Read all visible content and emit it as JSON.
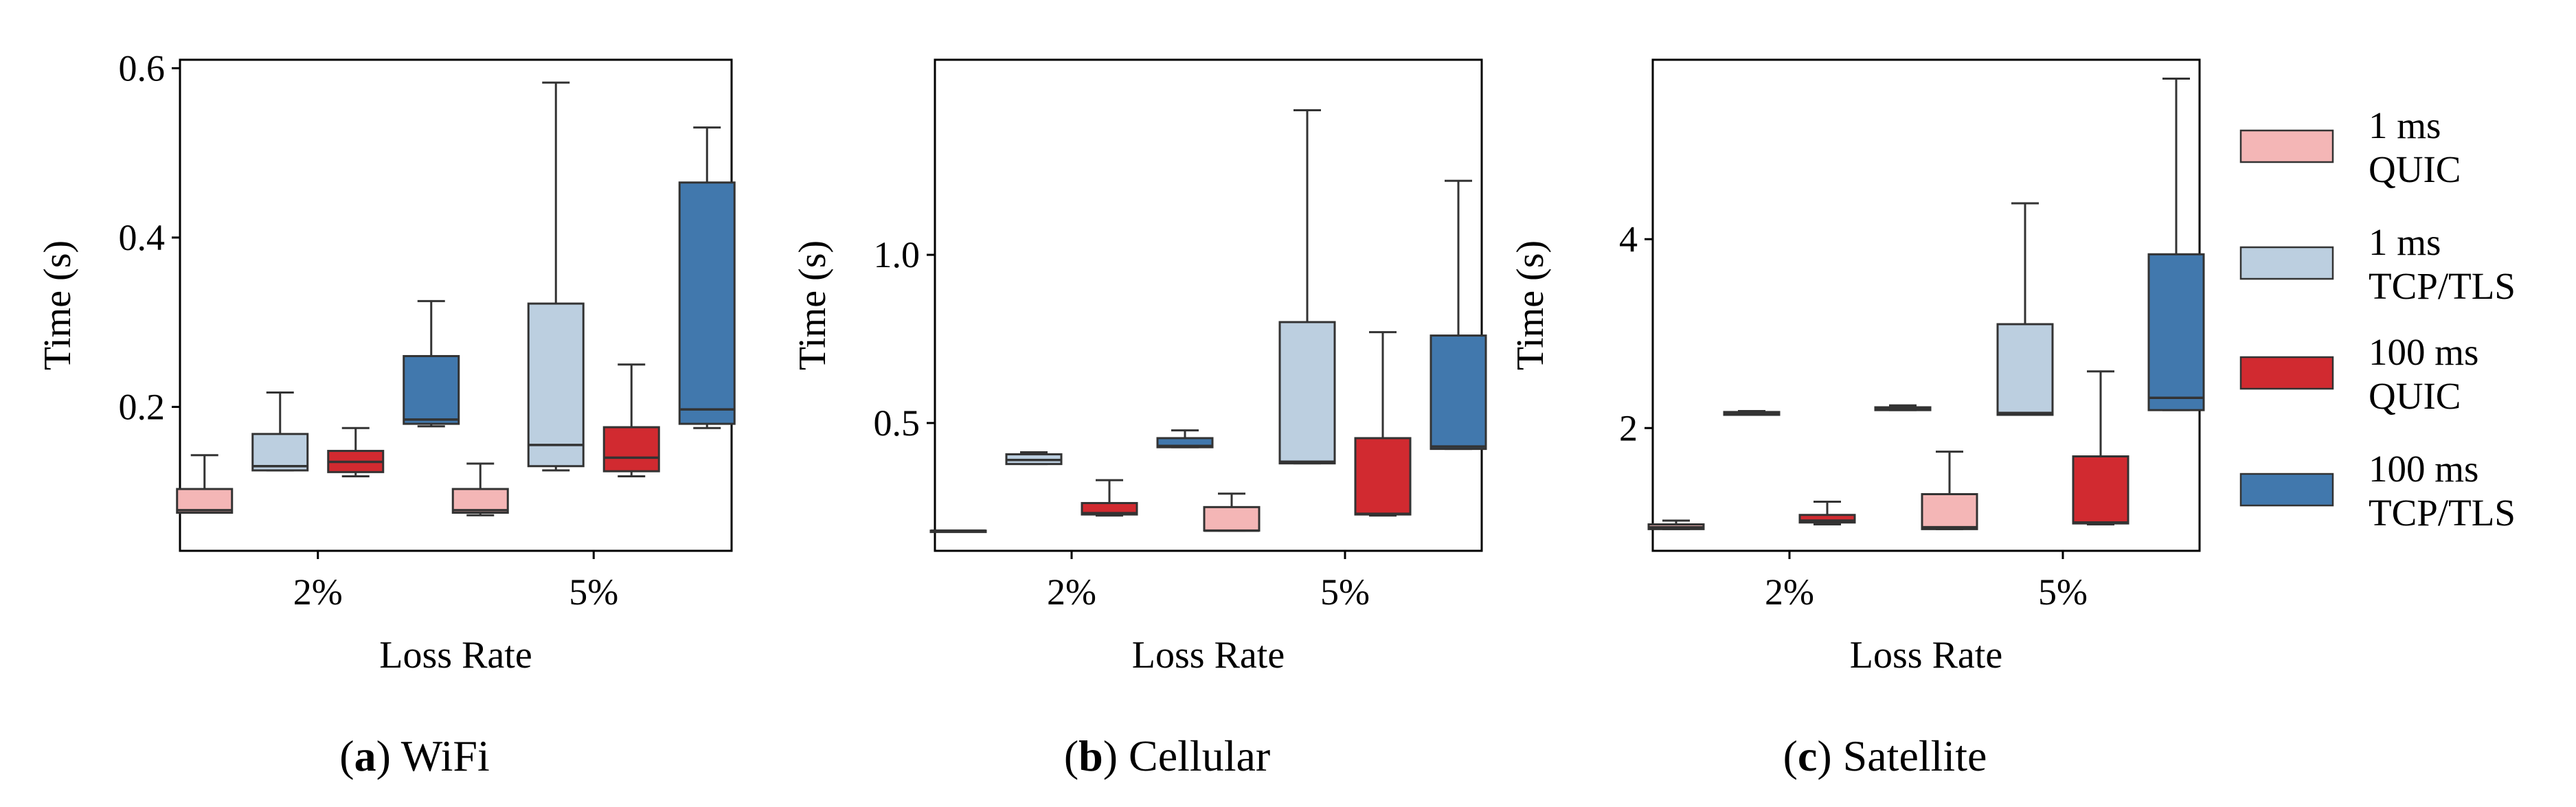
{
  "chart_data": [
    {
      "type": "boxplot",
      "caption_letter": "a",
      "caption_text": " WiFi",
      "xlabel": "Loss Rate",
      "ylabel": "Time (s)",
      "ylim": [
        0.03,
        0.61
      ],
      "yticks": [
        0.2,
        0.4,
        0.6
      ],
      "ytick_labels": [
        "0.2",
        "0.4",
        "0.6"
      ],
      "categories": [
        "2%",
        "5%"
      ],
      "boxes": [
        [
          {
            "series": 0,
            "min": 0.075,
            "q1": 0.075,
            "median": 0.078,
            "q3": 0.103,
            "max": 0.143
          },
          {
            "series": 1,
            "min": 0.125,
            "q1": 0.125,
            "median": 0.13,
            "q3": 0.168,
            "max": 0.217
          },
          {
            "series": 2,
            "min": 0.118,
            "q1": 0.123,
            "median": 0.135,
            "q3": 0.148,
            "max": 0.175
          },
          {
            "series": 3,
            "min": 0.177,
            "q1": 0.18,
            "median": 0.185,
            "q3": 0.26,
            "max": 0.325
          }
        ],
        [
          {
            "series": 0,
            "min": 0.072,
            "q1": 0.075,
            "median": 0.078,
            "q3": 0.103,
            "max": 0.133
          },
          {
            "series": 1,
            "min": 0.125,
            "q1": 0.13,
            "median": 0.155,
            "q3": 0.322,
            "max": 0.583
          },
          {
            "series": 2,
            "min": 0.118,
            "q1": 0.124,
            "median": 0.14,
            "q3": 0.176,
            "max": 0.25
          },
          {
            "series": 3,
            "min": 0.175,
            "q1": 0.18,
            "median": 0.197,
            "q3": 0.465,
            "max": 0.53
          }
        ]
      ]
    },
    {
      "type": "boxplot",
      "caption_letter": "b",
      "caption_text": " Cellular",
      "xlabel": "Loss Rate",
      "ylabel": "Time (s)",
      "ylim": [
        0.12,
        1.58
      ],
      "yticks": [
        0.5,
        1.0
      ],
      "ytick_labels": [
        "0.5",
        "1.0"
      ],
      "categories": [
        "2%",
        "5%"
      ],
      "boxes": [
        [
          {
            "series": 0,
            "min": 0.18,
            "q1": 0.18,
            "median": 0.18,
            "q3": 0.18,
            "max": 0.18
          },
          {
            "series": 1,
            "min": 0.378,
            "q1": 0.378,
            "median": 0.39,
            "q3": 0.407,
            "max": 0.413
          },
          {
            "series": 2,
            "min": 0.225,
            "q1": 0.228,
            "median": 0.232,
            "q3": 0.262,
            "max": 0.33
          },
          {
            "series": 3,
            "min": 0.428,
            "q1": 0.428,
            "median": 0.432,
            "q3": 0.455,
            "max": 0.478
          }
        ],
        [
          {
            "series": 0,
            "min": 0.18,
            "q1": 0.18,
            "median": 0.18,
            "q3": 0.25,
            "max": 0.29
          },
          {
            "series": 1,
            "min": 0.38,
            "q1": 0.38,
            "median": 0.385,
            "q3": 0.8,
            "max": 1.43
          },
          {
            "series": 2,
            "min": 0.225,
            "q1": 0.228,
            "median": 0.23,
            "q3": 0.455,
            "max": 0.77
          },
          {
            "series": 3,
            "min": 0.423,
            "q1": 0.423,
            "median": 0.43,
            "q3": 0.76,
            "max": 1.22
          }
        ]
      ]
    },
    {
      "type": "boxplot",
      "caption_letter": "c",
      "caption_text": " Satellite",
      "xlabel": "Loss Rate",
      "ylabel": "Time (s)",
      "ylim": [
        0.7,
        5.9
      ],
      "yticks": [
        2,
        4
      ],
      "ytick_labels": [
        "2",
        "4"
      ],
      "categories": [
        "2%",
        "5%"
      ],
      "boxes": [
        [
          {
            "series": 0,
            "min": 0.93,
            "q1": 0.93,
            "median": 0.95,
            "q3": 0.98,
            "max": 1.02
          },
          {
            "series": 1,
            "min": 2.14,
            "q1": 2.14,
            "median": 2.16,
            "q3": 2.17,
            "max": 2.18
          },
          {
            "series": 2,
            "min": 0.98,
            "q1": 1.0,
            "median": 1.02,
            "q3": 1.08,
            "max": 1.22
          },
          {
            "series": 3,
            "min": 2.19,
            "q1": 2.19,
            "median": 2.21,
            "q3": 2.22,
            "max": 2.24
          }
        ],
        [
          {
            "series": 0,
            "min": 0.93,
            "q1": 0.93,
            "median": 0.95,
            "q3": 1.3,
            "max": 1.75
          },
          {
            "series": 1,
            "min": 2.14,
            "q1": 2.14,
            "median": 2.16,
            "q3": 3.1,
            "max": 4.38
          },
          {
            "series": 2,
            "min": 0.98,
            "q1": 0.99,
            "median": 1.0,
            "q3": 1.7,
            "max": 2.6
          },
          {
            "series": 3,
            "min": 2.19,
            "q1": 2.19,
            "median": 2.32,
            "q3": 3.84,
            "max": 5.7
          }
        ]
      ]
    }
  ],
  "legend": [
    {
      "line1": "1 ms",
      "line2": "QUIC",
      "color": "#f4b6b6"
    },
    {
      "line1": "1 ms",
      "line2": "TCP/TLS",
      "color": "#bccfe0"
    },
    {
      "line1": "100 ms",
      "line2": "QUIC",
      "color": "#d12a30"
    },
    {
      "line1": "100 ms",
      "line2": "TCP/TLS",
      "color": "#4178ad"
    }
  ]
}
